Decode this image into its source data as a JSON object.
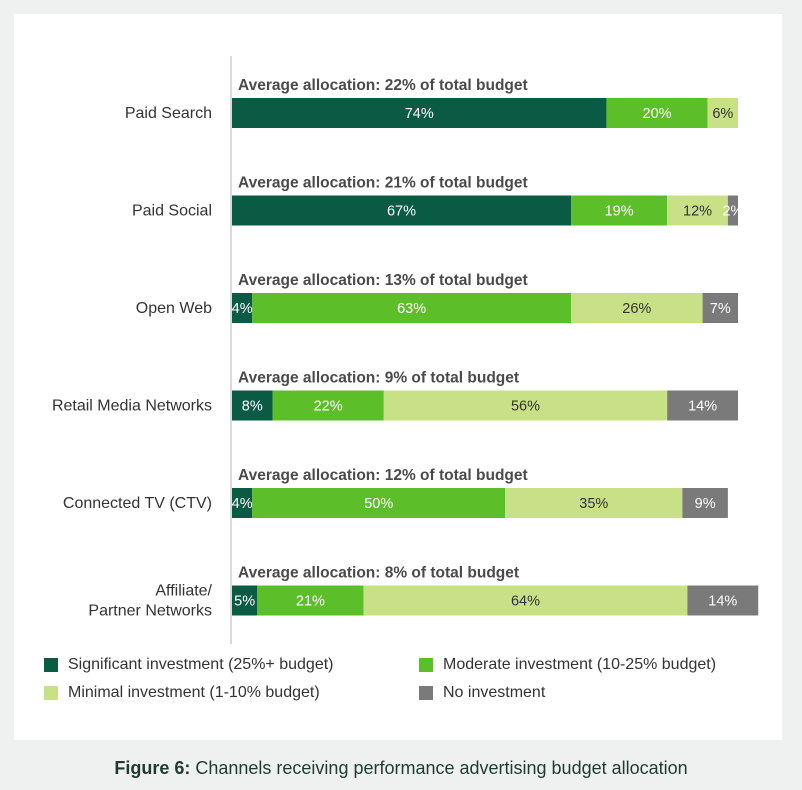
{
  "chart_data": {
    "type": "bar",
    "orientation": "horizontal",
    "stacked": true,
    "normalized": true,
    "xlim": [
      0,
      100
    ],
    "categories": [
      "Paid Search",
      "Paid Social",
      "Open Web",
      "Retail Media Networks",
      "Connected TV (CTV)",
      "Affiliate/Partner Networks"
    ],
    "annotations": [
      "Average allocation: 22% of total budget",
      "Average allocation: 21% of total budget",
      "Average allocation: 13% of total budget",
      "Average allocation: 9% of total budget",
      "Average allocation: 12% of total budget",
      "Average allocation: 8% of total budget"
    ],
    "series": [
      {
        "name": "Significant investment (25%+ budget)",
        "color": "#0b5a44",
        "label_color": "#ffffff",
        "values": [
          74,
          67,
          4,
          8,
          4,
          5
        ]
      },
      {
        "name": "Moderate investment (10-25% budget)",
        "color": "#5cbf2a",
        "label_color": "#ffffff",
        "values": [
          20,
          19,
          63,
          22,
          50,
          21
        ]
      },
      {
        "name": "Minimal investment (1-10% budget)",
        "color": "#c9e186",
        "label_color": "#333333",
        "values": [
          6,
          12,
          26,
          56,
          35,
          64
        ]
      },
      {
        "name": "No investment",
        "color": "#7a7a7a",
        "label_color": "#ffffff",
        "values": [
          0,
          2,
          7,
          14,
          9,
          14
        ]
      }
    ],
    "data_labels": [
      [
        "74%",
        "20%",
        "6%",
        ""
      ],
      [
        "67%",
        "19%",
        "12%",
        "2%"
      ],
      [
        "4%",
        "63%",
        "26%",
        "7%"
      ],
      [
        "8%",
        "22%",
        "56%",
        "14%"
      ],
      [
        "4%",
        "50%",
        "35%",
        "9%"
      ],
      [
        "5%",
        "21%",
        "64%",
        "14%"
      ]
    ],
    "legend_position": "bottom",
    "grid": false
  },
  "legend": {
    "items": [
      {
        "label": "Significant investment (25%+ budget)",
        "color": "#0b5a44"
      },
      {
        "label": "Moderate investment (10-25% budget)",
        "color": "#5cbf2a"
      },
      {
        "label": "Minimal investment (1-10% budget)",
        "color": "#c9e186"
      },
      {
        "label": "No investment",
        "color": "#7a7a7a"
      }
    ]
  },
  "caption": {
    "figure_number": "Figure 6:",
    "text": " Channels receiving performance advertising budget allocation"
  }
}
